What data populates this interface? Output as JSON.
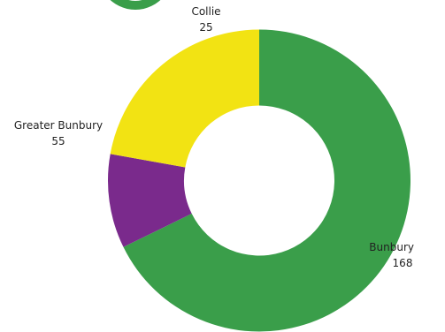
{
  "chart_data": {
    "type": "pie",
    "variant": "donut",
    "categories": [
      "Bunbury",
      "Collie",
      "Greater Bunbury"
    ],
    "values": [
      168,
      25,
      55
    ],
    "colors": [
      "#3a9e4a",
      "#7a2a8c",
      "#f2e313"
    ],
    "title": "",
    "legend": "none",
    "data_labels": "outside, category name above value"
  }
}
